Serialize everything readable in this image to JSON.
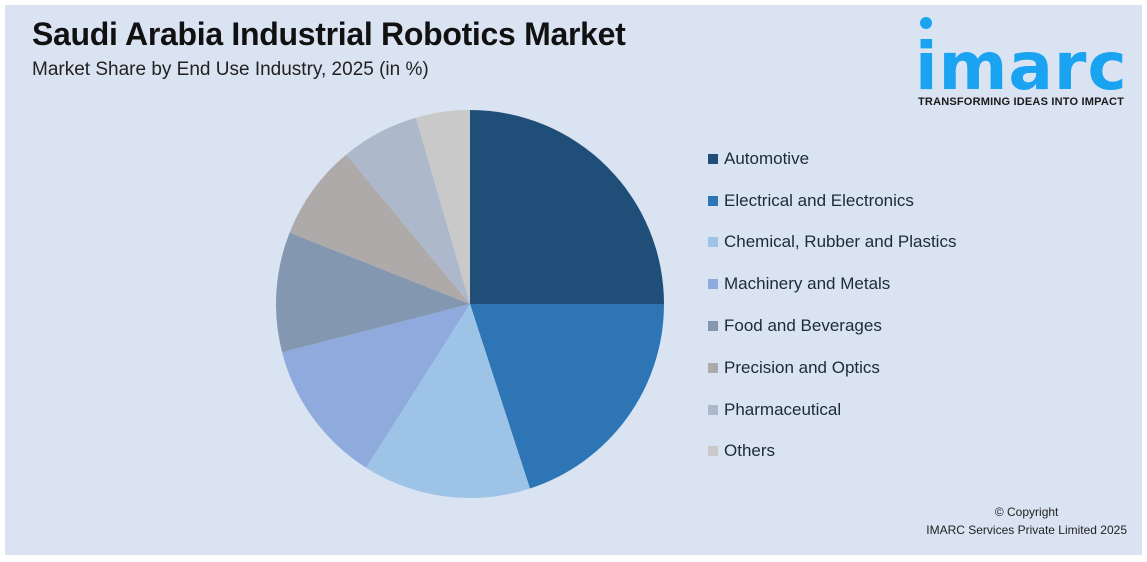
{
  "header": {
    "title": "Saudi Arabia Industrial Robotics Market",
    "subtitle": "Market Share by End Use Industry, 2025 (in %)"
  },
  "logo": {
    "word": "imarc",
    "tagline": "TRANSFORMING IDEAS INTO IMPACT",
    "color": "#1aa3f0"
  },
  "footer": {
    "line1": "© Copyright",
    "line2": "IMARC Services Private Limited 2025"
  },
  "chart_data": {
    "type": "pie",
    "title": "Saudi Arabia Industrial Robotics Market",
    "subtitle": "Market Share by End Use Industry, 2025 (in %)",
    "legend_position": "right",
    "start_angle": "12 o'clock, clockwise",
    "categories": [
      "Automotive",
      "Electrical and Electronics",
      "Chemical, Rubber and Plastics",
      "Machinery and Metals",
      "Food and Beverages",
      "Precision and Optics",
      "Pharmaceutical",
      "Others"
    ],
    "values": [
      25,
      20,
      14,
      12,
      10,
      8,
      6.5,
      4.5
    ],
    "colors": [
      "#1f4e79",
      "#2e75b6",
      "#9dc3e6",
      "#8faadc",
      "#8497b0",
      "#aeaaaa",
      "#adb9ca",
      "#c9c9c9"
    ]
  }
}
